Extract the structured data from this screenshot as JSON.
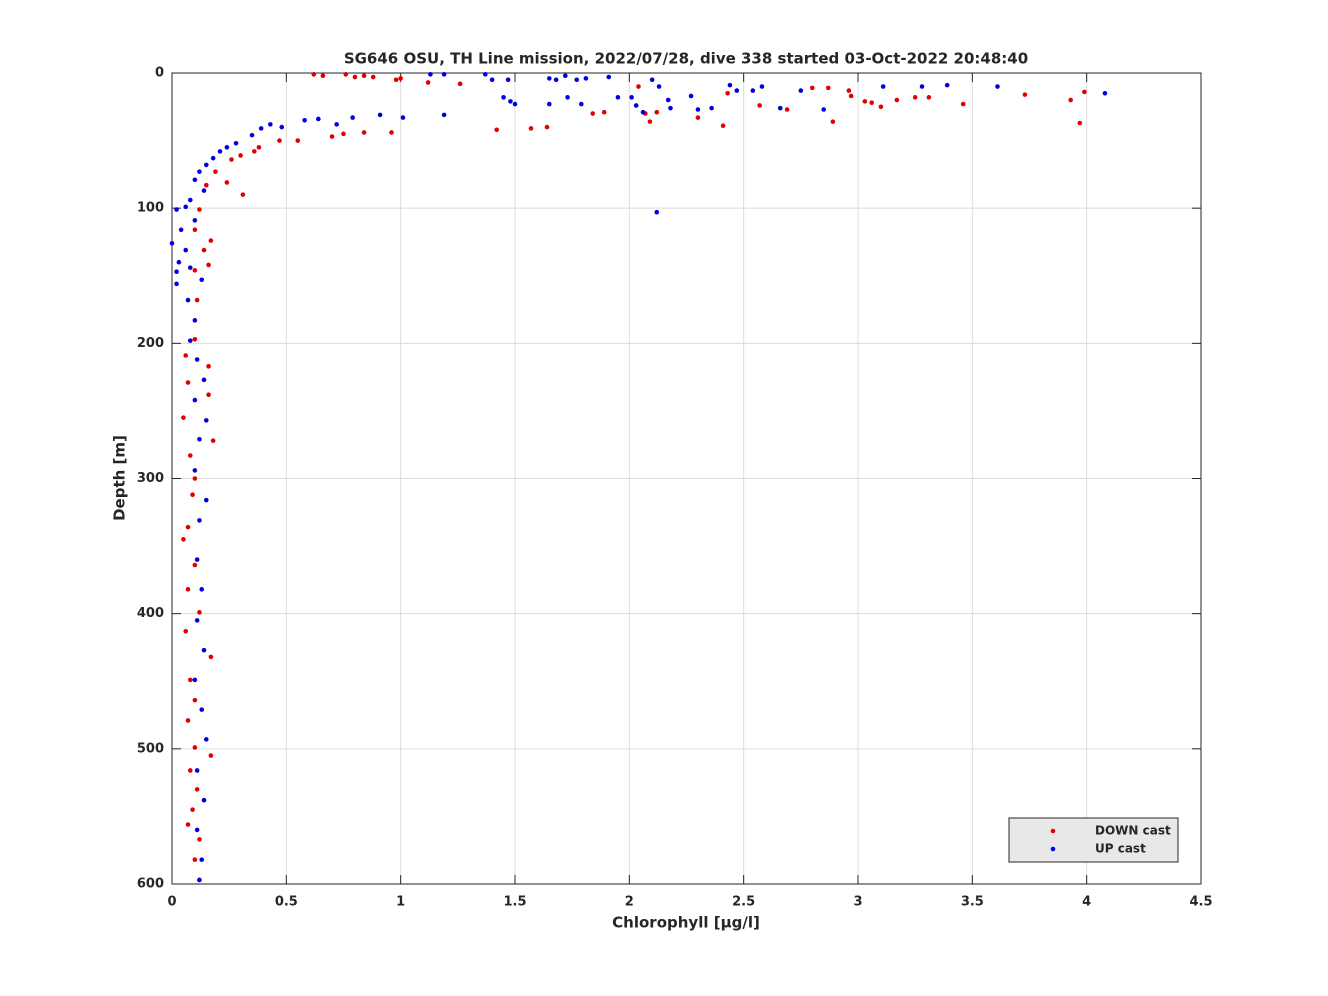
{
  "chart_data": {
    "type": "scatter",
    "title": "SG646 OSU, TH Line mission, 2022/07/28, dive 338 started 03-Oct-2022 20:48:40",
    "x_label": "Chlorophyll [μg/l]",
    "y_label": "Depth [m]",
    "xlim": [
      0,
      4.5
    ],
    "xticks": [
      0,
      0.5,
      1,
      1.5,
      2,
      2.5,
      3,
      3.5,
      4,
      4.5
    ],
    "ylim": [
      0,
      600
    ],
    "yticks": [
      0,
      100,
      200,
      300,
      400,
      500,
      600
    ],
    "y_inverted": true,
    "grid": true,
    "legend": "lower right",
    "series": [
      {
        "name": "DOWN cast",
        "color": "#e00000",
        "x": [
          0.62,
          0.66,
          0.76,
          0.8,
          0.84,
          0.88,
          0.98,
          1.0,
          1.12,
          1.26,
          1.42,
          1.57,
          1.64,
          1.84,
          1.89,
          2.04,
          2.07,
          2.09,
          2.12,
          2.3,
          2.41,
          2.43,
          2.57,
          2.69,
          2.8,
          2.87,
          2.89,
          2.96,
          2.97,
          3.03,
          3.06,
          3.1,
          3.17,
          3.25,
          3.31,
          3.46,
          3.73,
          3.93,
          3.97,
          3.99,
          0.7,
          0.75,
          0.84,
          0.96,
          0.55,
          0.47,
          0.38,
          0.36,
          0.3,
          0.26,
          0.24,
          0.31,
          0.19,
          0.15,
          0.17,
          0.16,
          0.11,
          0.1,
          0.06,
          0.16,
          0.07,
          0.16,
          0.05,
          0.18,
          0.08,
          0.1,
          0.09,
          0.07,
          0.05,
          0.1,
          0.07,
          0.12,
          0.06,
          0.17,
          0.08,
          0.1,
          0.07,
          0.1,
          0.17,
          0.08,
          0.11,
          0.09,
          0.07,
          0.12,
          0.1,
          0.12,
          0.12,
          0.1,
          0.14,
          0.1
        ],
        "y": [
          1,
          2,
          1,
          3,
          2,
          3,
          5,
          4,
          7,
          8,
          42,
          41,
          40,
          30,
          29,
          10,
          30,
          36,
          29,
          33,
          39,
          15,
          24,
          27,
          11,
          11,
          36,
          13,
          17,
          21,
          22,
          25,
          20,
          18,
          18,
          23,
          16,
          20,
          37,
          14,
          47,
          45,
          44,
          44,
          50,
          50,
          55,
          58,
          61,
          64,
          81,
          90,
          73,
          83,
          124,
          142,
          168,
          197,
          209,
          217,
          229,
          238,
          255,
          272,
          283,
          300,
          312,
          336,
          345,
          364,
          382,
          399,
          413,
          432,
          449,
          464,
          479,
          499,
          505,
          516,
          530,
          545,
          556,
          567,
          582,
          597,
          101,
          116,
          131,
          146
        ]
      },
      {
        "name": "UP cast",
        "color": "#0000e0",
        "x": [
          1.13,
          1.19,
          1.37,
          1.4,
          1.45,
          1.48,
          1.5,
          1.47,
          1.65,
          1.68,
          1.72,
          1.77,
          1.81,
          1.73,
          1.79,
          1.91,
          1.95,
          2.01,
          2.03,
          2.06,
          2.1,
          2.12,
          2.13,
          2.17,
          2.18,
          2.27,
          2.3,
          2.36,
          2.44,
          2.47,
          2.54,
          2.58,
          2.66,
          2.75,
          2.85,
          3.11,
          3.28,
          3.39,
          3.61,
          4.08,
          1.65,
          1.19,
          1.01,
          0.91,
          0.79,
          0.72,
          0.64,
          0.58,
          0.48,
          0.43,
          0.39,
          0.35,
          0.28,
          0.24,
          0.21,
          0.18,
          0.15,
          0.12,
          0.1,
          0.14,
          0.08,
          0.06,
          0.02,
          0.1,
          0.04,
          0.0,
          0.06,
          0.03,
          0.08,
          0.02,
          0.13,
          0.02,
          0.07,
          0.1,
          0.08,
          0.11,
          0.14,
          0.1,
          0.15,
          0.12,
          0.1,
          0.15,
          0.12,
          0.11,
          0.13,
          0.11,
          0.14,
          0.1,
          0.13,
          0.15,
          0.11,
          0.14,
          0.11,
          0.13,
          0.12
        ],
        "y": [
          1,
          1,
          1,
          5,
          18,
          21,
          23,
          5,
          4,
          5,
          2,
          5,
          4,
          18,
          23,
          3,
          18,
          18,
          24,
          29,
          5,
          103,
          10,
          20,
          26,
          17,
          27,
          26,
          9,
          13,
          13,
          10,
          26,
          13,
          27,
          10,
          10,
          9,
          10,
          15,
          23,
          31,
          33,
          31,
          33,
          38,
          34,
          35,
          40,
          38,
          41,
          46,
          52,
          55,
          58,
          63,
          68,
          73,
          79,
          87,
          94,
          99,
          101,
          109,
          116,
          126,
          131,
          140,
          144,
          147,
          153,
          156,
          168,
          183,
          198,
          212,
          227,
          242,
          257,
          271,
          294,
          316,
          331,
          360,
          382,
          405,
          427,
          449,
          471,
          493,
          516,
          538,
          560,
          582,
          597
        ]
      }
    ]
  }
}
